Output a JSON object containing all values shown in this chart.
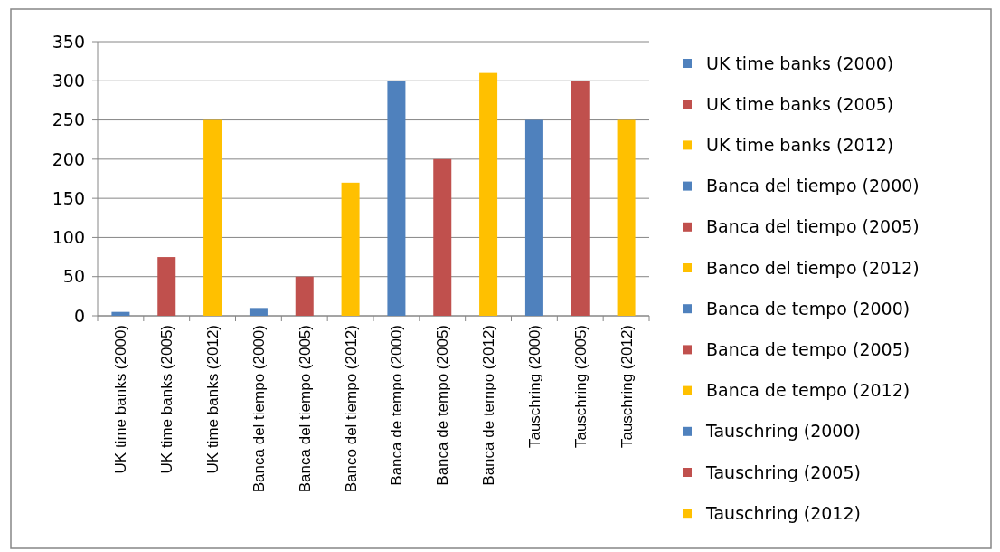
{
  "chart_data": {
    "type": "bar",
    "categories": [
      "UK time banks (2000)",
      "UK time banks (2005)",
      "UK time banks (2012)",
      "Banca del tiempo (2000)",
      "Banca del tiempo (2005)",
      "Banco del tiempo (2012)",
      "Banca de tempo (2000)",
      "Banca de tempo (2005)",
      "Banca de tempo (2012)",
      "Tauschring (2000)",
      "Tauschring (2005)",
      "Tauschring (2012)"
    ],
    "series": [
      {
        "name": "UK time banks (2000)",
        "color": "#4f81bd",
        "values": [
          5,
          null,
          null,
          null,
          null,
          null,
          null,
          null,
          null,
          null,
          null,
          null
        ]
      },
      {
        "name": "UK time banks (2005)",
        "color": "#c0504d",
        "values": [
          null,
          75,
          null,
          null,
          null,
          null,
          null,
          null,
          null,
          null,
          null,
          null
        ]
      },
      {
        "name": "UK time banks (2012)",
        "color": "#ffc000",
        "values": [
          null,
          null,
          250,
          null,
          null,
          null,
          null,
          null,
          null,
          null,
          null,
          null
        ]
      },
      {
        "name": "Banca del tiempo (2000)",
        "color": "#4f81bd",
        "values": [
          null,
          null,
          null,
          10,
          null,
          null,
          null,
          null,
          null,
          null,
          null,
          null
        ]
      },
      {
        "name": "Banca del tiempo (2005)",
        "color": "#c0504d",
        "values": [
          null,
          null,
          null,
          null,
          50,
          null,
          null,
          null,
          null,
          null,
          null,
          null
        ]
      },
      {
        "name": "Banco del tiempo (2012)",
        "color": "#ffc000",
        "values": [
          null,
          null,
          null,
          null,
          null,
          170,
          null,
          null,
          null,
          null,
          null,
          null
        ]
      },
      {
        "name": "Banca de tempo (2000)",
        "color": "#4f81bd",
        "values": [
          null,
          null,
          null,
          null,
          null,
          null,
          300,
          null,
          null,
          null,
          null,
          null
        ]
      },
      {
        "name": "Banca de tempo (2005)",
        "color": "#c0504d",
        "values": [
          null,
          null,
          null,
          null,
          null,
          null,
          null,
          200,
          null,
          null,
          null,
          null
        ]
      },
      {
        "name": "Banca de tempo (2012)",
        "color": "#ffc000",
        "values": [
          null,
          null,
          null,
          null,
          null,
          null,
          null,
          null,
          310,
          null,
          null,
          null
        ]
      },
      {
        "name": "Tauschring (2000)",
        "color": "#4f81bd",
        "values": [
          null,
          null,
          null,
          null,
          null,
          null,
          null,
          null,
          null,
          250,
          null,
          null
        ]
      },
      {
        "name": "Tauschring (2005)",
        "color": "#c0504d",
        "values": [
          null,
          null,
          null,
          null,
          null,
          null,
          null,
          null,
          null,
          null,
          300,
          null
        ]
      },
      {
        "name": "Tauschring (2012)",
        "color": "#ffc000",
        "values": [
          null,
          null,
          null,
          null,
          null,
          null,
          null,
          null,
          null,
          null,
          null,
          250
        ]
      }
    ],
    "ylim": [
      0,
      350
    ],
    "yticks": [
      0,
      50,
      100,
      150,
      200,
      250,
      300,
      350
    ],
    "grid": "y",
    "legend": "right"
  }
}
